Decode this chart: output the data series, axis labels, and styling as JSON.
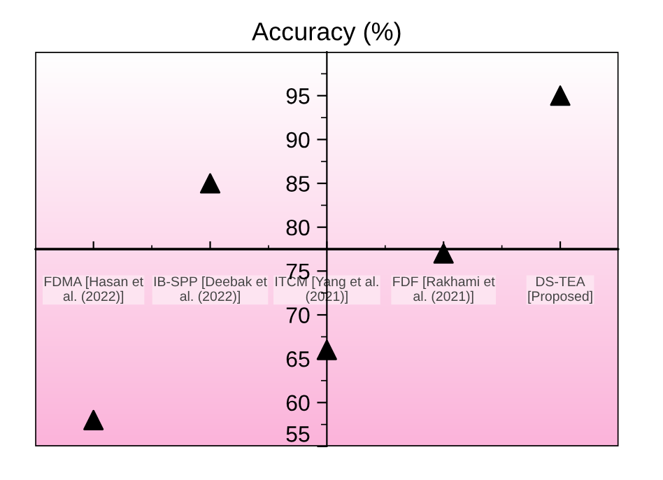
{
  "chart_data": {
    "type": "scatter",
    "title": "Accuracy (%)",
    "categories": [
      "FDMA [Hasan et\nal. (2022)]",
      "IB-SPP [Deebak et\nal. (2022)]",
      "ITCM [Yang et al.\n(2021)]",
      "FDF [Rakhami et\nal. (2021)]",
      "DS-TEA\n[Proposed]"
    ],
    "series": [
      {
        "color": "#000000",
        "values": [
          58,
          85,
          66,
          77,
          95
        ]
      }
    ],
    "marker": "triangle",
    "ylim": [
      55,
      100
    ],
    "yticks": [
      55,
      60,
      65,
      70,
      75,
      80,
      85,
      90,
      95
    ],
    "ref_lines": [
      {
        "axis": "y",
        "value": 77.5,
        "color": "#000000"
      }
    ],
    "grid": false,
    "legend": false
  }
}
